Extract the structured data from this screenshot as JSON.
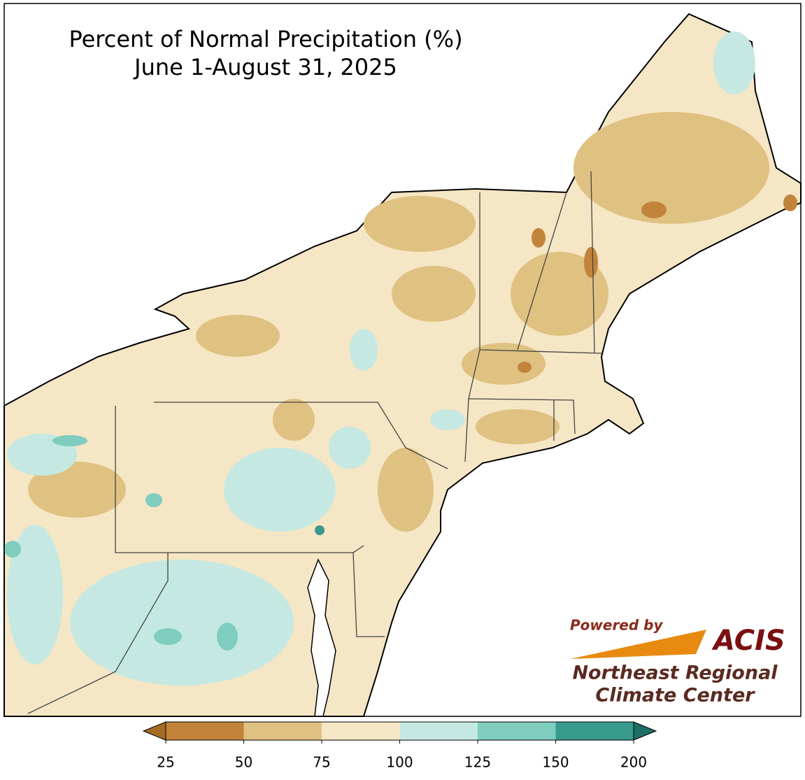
{
  "title": "Percent of Normal Precipitation (%)",
  "subtitle": "June 1-August 31, 2025",
  "logo": {
    "powered": "Powered by",
    "brand": "ACIS",
    "line1": "Northeast Regional",
    "line2": "Climate Center"
  },
  "legend": {
    "ticks": [
      25,
      50,
      75,
      100,
      125,
      150,
      200
    ],
    "colors": [
      "#a66a24",
      "#c2843a",
      "#dfc181",
      "#f5e6c5",
      "#c5e9e2",
      "#7fcdbf",
      "#379a8d",
      "#1d6e64"
    ]
  }
}
